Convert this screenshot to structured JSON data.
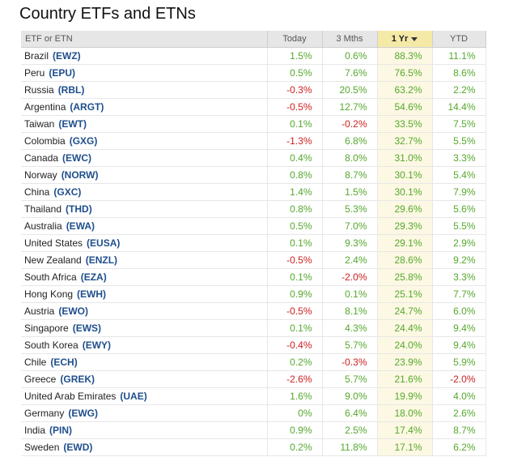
{
  "title": "Country ETFs and ETNs",
  "colors": {
    "positive": "#55a82d",
    "negative": "#cc1f1f",
    "ticker": "#1f4e8c",
    "sorted_header": "#f5e9a8"
  },
  "columns": {
    "name": "ETF or ETN",
    "today": "Today",
    "m3": "3 Mths",
    "y1": "1 Yr",
    "ytd": "YTD"
  },
  "sorted_column_icon": "caret-down-icon",
  "rows": [
    {
      "country": "Brazil",
      "ticker": "(EWZ)",
      "today": "1.5%",
      "m3": "0.6%",
      "y1": "88.3%",
      "ytd": "11.1%"
    },
    {
      "country": "Peru",
      "ticker": "(EPU)",
      "today": "0.5%",
      "m3": "7.6%",
      "y1": "76.5%",
      "ytd": "8.6%"
    },
    {
      "country": "Russia",
      "ticker": "(RBL)",
      "today": "-0.3%",
      "m3": "20.5%",
      "y1": "63.2%",
      "ytd": "2.2%"
    },
    {
      "country": "Argentina",
      "ticker": "(ARGT)",
      "today": "-0.5%",
      "m3": "12.7%",
      "y1": "54.6%",
      "ytd": "14.4%"
    },
    {
      "country": "Taiwan",
      "ticker": "(EWT)",
      "today": "0.1%",
      "m3": "-0.2%",
      "y1": "33.5%",
      "ytd": "7.5%"
    },
    {
      "country": "Colombia",
      "ticker": "(GXG)",
      "today": "-1.3%",
      "m3": "6.8%",
      "y1": "32.7%",
      "ytd": "5.5%"
    },
    {
      "country": "Canada",
      "ticker": "(EWC)",
      "today": "0.4%",
      "m3": "8.0%",
      "y1": "31.0%",
      "ytd": "3.3%"
    },
    {
      "country": "Norway",
      "ticker": "(NORW)",
      "today": "0.8%",
      "m3": "8.7%",
      "y1": "30.1%",
      "ytd": "5.4%"
    },
    {
      "country": "China",
      "ticker": "(GXC)",
      "today": "1.4%",
      "m3": "1.5%",
      "y1": "30.1%",
      "ytd": "7.9%"
    },
    {
      "country": "Thailand",
      "ticker": "(THD)",
      "today": "0.8%",
      "m3": "5.3%",
      "y1": "29.6%",
      "ytd": "5.6%"
    },
    {
      "country": "Australia",
      "ticker": "(EWA)",
      "today": "0.5%",
      "m3": "7.0%",
      "y1": "29.3%",
      "ytd": "5.5%"
    },
    {
      "country": "United States",
      "ticker": "(EUSA)",
      "today": "0.1%",
      "m3": "9.3%",
      "y1": "29.1%",
      "ytd": "2.9%"
    },
    {
      "country": "New Zealand",
      "ticker": "(ENZL)",
      "today": "-0.5%",
      "m3": "2.4%",
      "y1": "28.6%",
      "ytd": "9.2%"
    },
    {
      "country": "South Africa",
      "ticker": "(EZA)",
      "today": "0.1%",
      "m3": "-2.0%",
      "y1": "25.8%",
      "ytd": "3.3%"
    },
    {
      "country": "Hong Kong",
      "ticker": "(EWH)",
      "today": "0.9%",
      "m3": "0.1%",
      "y1": "25.1%",
      "ytd": "7.7%"
    },
    {
      "country": "Austria",
      "ticker": "(EWO)",
      "today": "-0.5%",
      "m3": "8.1%",
      "y1": "24.7%",
      "ytd": "6.0%"
    },
    {
      "country": "Singapore",
      "ticker": "(EWS)",
      "today": "0.1%",
      "m3": "4.3%",
      "y1": "24.4%",
      "ytd": "9.4%"
    },
    {
      "country": "South Korea",
      "ticker": "(EWY)",
      "today": "-0.4%",
      "m3": "5.7%",
      "y1": "24.0%",
      "ytd": "9.4%"
    },
    {
      "country": "Chile",
      "ticker": "(ECH)",
      "today": "0.2%",
      "m3": "-0.3%",
      "y1": "23.9%",
      "ytd": "5.9%"
    },
    {
      "country": "Greece",
      "ticker": "(GREK)",
      "today": "-2.6%",
      "m3": "5.7%",
      "y1": "21.6%",
      "ytd": "-2.0%"
    },
    {
      "country": "United Arab Emirates",
      "ticker": "(UAE)",
      "today": "1.6%",
      "m3": "9.0%",
      "y1": "19.9%",
      "ytd": "4.0%"
    },
    {
      "country": "Germany",
      "ticker": "(EWG)",
      "today": "0%",
      "m3": "6.4%",
      "y1": "18.0%",
      "ytd": "2.6%"
    },
    {
      "country": "India",
      "ticker": "(PIN)",
      "today": "0.9%",
      "m3": "2.5%",
      "y1": "17.4%",
      "ytd": "8.7%"
    },
    {
      "country": "Sweden",
      "ticker": "(EWD)",
      "today": "0.2%",
      "m3": "11.8%",
      "y1": "17.1%",
      "ytd": "6.2%"
    }
  ]
}
